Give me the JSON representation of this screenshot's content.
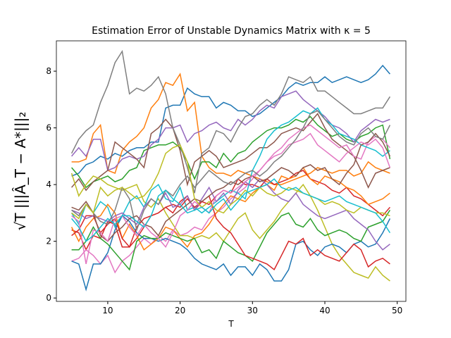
{
  "chart_data": {
    "type": "line",
    "title": "Estimation Error of Unstable Dynamics Matrix with κ = 5",
    "x_label": "T",
    "y_label": "√T |||Â_T − A*|||₂",
    "xlim": [
      2.9,
      51.2
    ],
    "ylim": [
      -0.12,
      9.07
    ],
    "xticks": [
      10,
      20,
      30,
      40,
      50
    ],
    "yticks": [
      0,
      2,
      4,
      6,
      8
    ],
    "grid": false,
    "x": [
      5,
      6,
      7,
      8,
      9,
      10,
      11,
      12,
      13,
      14,
      15,
      16,
      17,
      18,
      19,
      20,
      21,
      22,
      23,
      24,
      25,
      26,
      27,
      28,
      29,
      30,
      31,
      32,
      33,
      34,
      35,
      36,
      37,
      38,
      39,
      40,
      41,
      42,
      43,
      44,
      45,
      46,
      47,
      48,
      49
    ],
    "series": [
      {
        "color": "#1f77b4",
        "values": [
          4.3,
          4.4,
          4.7,
          4.8,
          5.0,
          4.9,
          5.1,
          5.0,
          5.2,
          5.3,
          5.3,
          5.5,
          5.5,
          6.7,
          6.8,
          6.8,
          7.4,
          7.2,
          7.1,
          7.1,
          6.7,
          6.9,
          6.8,
          6.6,
          6.6,
          6.4,
          6.5,
          6.7,
          6.9,
          7.1,
          7.4,
          7.6,
          7.5,
          7.6,
          7.6,
          7.8,
          7.6,
          7.7,
          7.8,
          7.7,
          7.6,
          7.7,
          7.9,
          8.2,
          7.9
        ]
      },
      {
        "color": "#ff7f0e",
        "values": [
          4.8,
          4.8,
          4.9,
          5.8,
          6.1,
          4.5,
          4.4,
          5.2,
          5.5,
          5.7,
          6.0,
          6.7,
          7.0,
          7.6,
          7.5,
          7.9,
          6.6,
          6.9,
          5.0,
          4.6,
          4.4,
          4.4,
          4.3,
          4.5,
          4.4,
          4.3,
          4.2,
          4.1,
          4.0,
          4.0,
          4.1,
          4.2,
          4.3,
          4.4,
          4.6,
          4.5,
          4.4,
          4.5,
          4.5,
          4.3,
          4.4,
          4.8,
          4.6,
          4.5,
          4.4
        ]
      },
      {
        "color": "#2ca02c",
        "values": [
          4.6,
          4.3,
          3.9,
          4.1,
          4.2,
          4.3,
          4.1,
          4.2,
          4.5,
          4.6,
          5.2,
          5.3,
          5.4,
          5.4,
          5.5,
          5.3,
          4.8,
          4.2,
          4.8,
          4.8,
          4.6,
          5.1,
          4.8,
          5.1,
          5.2,
          5.5,
          5.7,
          5.9,
          6.0,
          6.0,
          6.1,
          6.3,
          6.2,
          6.4,
          6.1,
          5.9,
          5.7,
          5.8,
          5.6,
          5.5,
          5.7,
          5.8,
          6.0,
          6.1,
          4.9
        ]
      },
      {
        "color": "#d62728",
        "values": [
          2.4,
          2.3,
          1.7,
          2.2,
          2.1,
          2.7,
          2.6,
          1.8,
          1.8,
          2.1,
          2.5,
          2.9,
          3.0,
          3.2,
          3.0,
          3.4,
          3.6,
          3.1,
          3.4,
          3.3,
          3.6,
          3.8,
          3.7,
          4.2,
          4.0,
          4.0,
          3.9,
          4.2,
          4.0,
          4.1,
          4.2,
          4.4,
          4.5,
          4.2,
          4.1,
          4.0,
          3.8,
          3.7,
          3.9,
          3.6,
          3.5,
          3.3,
          3.1,
          2.9,
          3.2
        ]
      },
      {
        "color": "#9467bd",
        "values": [
          5.0,
          5.3,
          5.0,
          5.6,
          5.6,
          4.5,
          4.6,
          4.9,
          5.0,
          4.9,
          5.0,
          5.4,
          5.6,
          6.0,
          6.0,
          6.1,
          5.5,
          5.8,
          5.9,
          6.1,
          6.2,
          6.0,
          5.9,
          6.3,
          6.1,
          6.3,
          6.6,
          6.8,
          6.7,
          7.1,
          7.2,
          7.3,
          7.0,
          6.8,
          6.6,
          6.4,
          6.1,
          6.0,
          5.8,
          5.5,
          5.9,
          6.1,
          6.3,
          6.2,
          6.3
        ]
      },
      {
        "color": "#8c564b",
        "values": [
          3.9,
          4.2,
          3.8,
          4.1,
          4.3,
          4.5,
          5.5,
          5.3,
          5.1,
          4.9,
          4.6,
          5.8,
          6.0,
          6.3,
          6.0,
          5.2,
          4.0,
          4.8,
          5.0,
          5.2,
          5.0,
          4.6,
          4.7,
          4.8,
          4.9,
          5.1,
          5.3,
          5.3,
          5.5,
          5.8,
          5.9,
          6.0,
          5.9,
          6.2,
          6.5,
          6.0,
          5.6,
          5.4,
          5.2,
          5.0,
          4.5,
          3.9,
          4.4,
          4.5,
          4.6
        ]
      },
      {
        "color": "#e377c2",
        "values": [
          1.3,
          1.4,
          1.7,
          1.5,
          1.2,
          1.5,
          0.9,
          1.3,
          1.5,
          1.8,
          2.1,
          1.9,
          2.2,
          2.0,
          2.4,
          2.2,
          2.3,
          2.5,
          2.4,
          2.8,
          3.0,
          3.2,
          3.5,
          3.7,
          3.9,
          4.2,
          4.5,
          4.8,
          5.1,
          5.3,
          5.6,
          5.8,
          6.0,
          6.1,
          5.9,
          5.7,
          5.5,
          5.3,
          5.4,
          5.0,
          4.9,
          5.5,
          5.7,
          5.6,
          5.3
        ]
      },
      {
        "color": "#7f7f7f",
        "values": [
          5.1,
          5.6,
          5.9,
          6.1,
          6.9,
          7.5,
          8.3,
          8.7,
          7.2,
          7.4,
          7.3,
          7.5,
          7.8,
          7.2,
          6.0,
          5.4,
          4.6,
          3.7,
          5.1,
          5.3,
          5.9,
          5.8,
          5.5,
          6.0,
          6.4,
          6.5,
          6.8,
          7.0,
          6.8,
          7.2,
          7.8,
          7.7,
          7.6,
          7.8,
          7.3,
          7.3,
          7.1,
          6.9,
          6.7,
          6.5,
          6.5,
          6.6,
          6.7,
          6.7,
          7.1
        ]
      },
      {
        "color": "#bcbd22",
        "values": [
          4.4,
          3.6,
          4.0,
          4.3,
          4.2,
          4.0,
          3.9,
          3.8,
          3.9,
          4.0,
          3.4,
          3.2,
          3.5,
          3.0,
          2.6,
          2.2,
          2.2,
          2.1,
          2.2,
          2.1,
          2.3,
          2.0,
          2.4,
          2.8,
          3.0,
          2.4,
          2.1,
          2.4,
          2.7,
          3.1,
          3.4,
          3.7,
          4.0,
          3.6,
          3.1,
          2.5,
          1.9,
          1.5,
          1.2,
          0.9,
          0.8,
          0.7,
          1.1,
          0.8,
          0.6
        ]
      },
      {
        "color": "#17becf",
        "values": [
          3.0,
          2.6,
          3.3,
          3.0,
          3.4,
          3.2,
          2.5,
          2.9,
          3.4,
          3.6,
          3.2,
          3.8,
          4.0,
          3.5,
          3.4,
          3.9,
          3.1,
          3.2,
          3.0,
          3.2,
          3.4,
          3.6,
          3.8,
          3.7,
          3.5,
          4.5,
          5.0,
          5.6,
          5.9,
          6.1,
          6.2,
          6.4,
          6.6,
          6.5,
          6.7,
          6.3,
          6.1,
          5.8,
          5.7,
          5.6,
          5.4,
          5.3,
          5.2,
          5.0,
          5.2
        ]
      },
      {
        "color": "#1f77b4",
        "values": [
          1.3,
          1.2,
          0.3,
          1.2,
          1.2,
          1.6,
          2.4,
          2.9,
          2.7,
          2.3,
          2.1,
          2.1,
          2.0,
          2.1,
          2.0,
          1.9,
          1.7,
          1.4,
          1.2,
          1.1,
          1.0,
          1.2,
          0.8,
          1.1,
          1.1,
          0.8,
          1.2,
          1.0,
          0.6,
          0.6,
          1.0,
          1.9,
          2.0,
          1.7,
          1.5,
          1.8,
          1.9,
          1.8,
          1.6,
          1.9,
          2.0,
          1.8,
          1.9,
          2.3,
          2.8
        ]
      },
      {
        "color": "#ff7f0e",
        "values": [
          2.5,
          2.0,
          2.5,
          2.8,
          2.9,
          3.3,
          3.0,
          2.1,
          2.6,
          2.2,
          1.7,
          1.9,
          2.1,
          2.5,
          2.4,
          2.1,
          1.8,
          2.2,
          2.3,
          2.6,
          3.0,
          3.3,
          3.6,
          3.5,
          3.4,
          3.7,
          3.9,
          4.0,
          3.8,
          4.3,
          4.2,
          4.3,
          4.6,
          4.2,
          4.0,
          4.3,
          4.2,
          4.1,
          3.9,
          3.8,
          3.6,
          3.3,
          3.4,
          3.5,
          3.7
        ]
      },
      {
        "color": "#2ca02c",
        "values": [
          1.7,
          1.7,
          2.0,
          2.5,
          2.1,
          1.9,
          1.6,
          1.3,
          1.0,
          2.0,
          2.2,
          2.1,
          2.1,
          2.3,
          2.2,
          2.1,
          2.0,
          2.1,
          1.6,
          1.7,
          1.4,
          2.0,
          1.8,
          1.6,
          1.5,
          1.3,
          1.8,
          2.3,
          2.6,
          2.9,
          3.0,
          2.6,
          2.5,
          2.8,
          2.4,
          2.2,
          2.3,
          2.4,
          2.3,
          2.1,
          2.0,
          2.5,
          2.6,
          2.7,
          3.1
        ]
      },
      {
        "color": "#d62728",
        "values": [
          2.2,
          2.4,
          2.9,
          2.9,
          2.3,
          2.6,
          2.8,
          2.1,
          1.8,
          2.5,
          2.8,
          2.9,
          3.0,
          3.2,
          3.3,
          3.2,
          3.5,
          3.2,
          3.4,
          3.6,
          2.8,
          2.5,
          2.3,
          1.9,
          1.5,
          1.4,
          1.3,
          1.2,
          1.0,
          1.5,
          2.0,
          1.9,
          2.1,
          1.5,
          1.7,
          1.5,
          1.4,
          1.3,
          1.6,
          1.9,
          1.7,
          1.1,
          1.3,
          1.4,
          1.2
        ]
      },
      {
        "color": "#9467bd",
        "values": [
          3.1,
          3.0,
          2.8,
          2.9,
          2.8,
          2.7,
          2.9,
          3.0,
          2.8,
          2.6,
          3.2,
          3.5,
          3.3,
          3.7,
          3.2,
          3.3,
          3.6,
          3.1,
          3.5,
          3.9,
          3.4,
          3.7,
          3.3,
          3.8,
          4.1,
          3.9,
          4.2,
          4.0,
          3.7,
          3.5,
          3.4,
          3.7,
          3.3,
          3.1,
          2.9,
          2.8,
          2.9,
          3.0,
          3.1,
          2.8,
          2.6,
          2.4,
          2.0,
          1.7,
          1.9
        ]
      },
      {
        "color": "#8c564b",
        "values": [
          3.2,
          3.1,
          3.4,
          3.0,
          2.2,
          2.0,
          2.3,
          2.5,
          2.8,
          2.9,
          2.6,
          2.5,
          2.2,
          2.7,
          2.9,
          3.1,
          3.3,
          3.5,
          3.4,
          3.6,
          3.8,
          3.9,
          4.1,
          4.0,
          4.2,
          4.3,
          4.1,
          4.2,
          4.4,
          4.6,
          4.5,
          4.3,
          4.6,
          4.7,
          4.5,
          4.6,
          4.2,
          4.0,
          4.4,
          4.7,
          5.4,
          5.5,
          5.8,
          5.5,
          5.0
        ]
      },
      {
        "color": "#e377c2",
        "values": [
          2.9,
          2.7,
          1.2,
          2.4,
          2.3,
          2.0,
          2.8,
          2.9,
          2.5,
          2.2,
          2.6,
          2.3,
          2.1,
          1.8,
          2.3,
          2.9,
          3.1,
          3.4,
          3.2,
          3.0,
          3.6,
          3.8,
          3.7,
          3.9,
          4.1,
          4.3,
          4.5,
          4.8,
          5.0,
          5.1,
          5.4,
          5.5,
          5.6,
          5.8,
          5.4,
          5.2,
          5.0,
          4.8,
          5.1,
          5.3,
          5.5,
          5.4,
          5.6,
          5.3,
          4.6
        ]
      },
      {
        "color": "#7f7f7f",
        "values": [
          3.1,
          2.9,
          3.3,
          3.0,
          2.7,
          2.6,
          3.1,
          3.9,
          3.5,
          2.4,
          3.1,
          3.5,
          3.3,
          3.8,
          3.6,
          4.0,
          4.3,
          3.9,
          4.2,
          4.5,
          4.3,
          4.1,
          4.0,
          4.2,
          4.4,
          4.5,
          4.3,
          4.5,
          4.8,
          5.0,
          5.3,
          5.6,
          6.0,
          6.5,
          6.6,
          6.3,
          6.0,
          5.7,
          5.5,
          5.4,
          5.8,
          6.0,
          5.7,
          5.6,
          6.1
        ]
      },
      {
        "color": "#bcbd22",
        "values": [
          3.0,
          2.8,
          3.3,
          3.0,
          3.9,
          3.6,
          3.8,
          3.9,
          3.7,
          3.5,
          3.6,
          3.9,
          4.4,
          5.1,
          5.3,
          5.4,
          4.8,
          3.5,
          3.2,
          3.4,
          3.1,
          3.0,
          3.3,
          3.5,
          3.8,
          3.6,
          3.9,
          3.7,
          3.6,
          3.7,
          3.9,
          3.8,
          3.7,
          3.6,
          3.5,
          3.3,
          3.4,
          3.3,
          3.1,
          3.0,
          3.2,
          3.1,
          3.0,
          3.0,
          2.9
        ]
      },
      {
        "color": "#17becf",
        "values": [
          2.8,
          2.5,
          2.0,
          2.2,
          2.5,
          2.8,
          2.6,
          2.9,
          2.9,
          2.7,
          2.5,
          2.9,
          3.6,
          3.8,
          3.5,
          3.3,
          3.0,
          3.1,
          3.2,
          3.0,
          3.3,
          3.5,
          3.1,
          3.4,
          3.7,
          3.8,
          3.9,
          4.0,
          4.2,
          3.9,
          3.8,
          3.9,
          3.7,
          3.6,
          3.5,
          3.4,
          3.5,
          3.6,
          3.4,
          3.3,
          3.2,
          3.1,
          3.0,
          2.7,
          2.3
        ]
      }
    ]
  }
}
